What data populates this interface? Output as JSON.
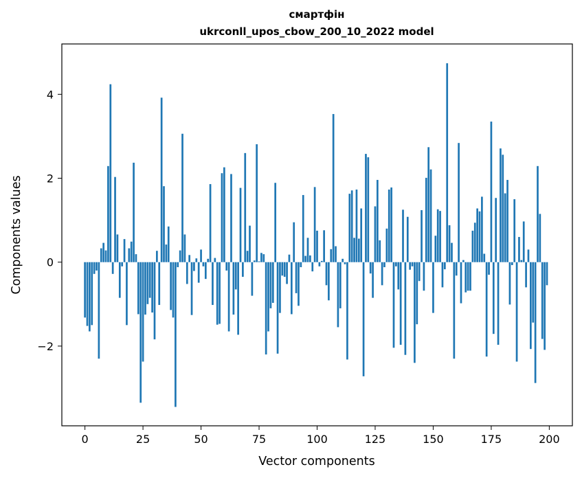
{
  "chart_data": {
    "type": "bar",
    "title": "смартфін",
    "subtitle": "ukrconll_upos_cbow_200_10_2022 model",
    "xlabel": "Vector components",
    "ylabel": "Components values",
    "xlim": [
      -9.95,
      209.95
    ],
    "ylim": [
      -3.9,
      5.2
    ],
    "xticks": [
      0,
      25,
      50,
      75,
      100,
      125,
      150,
      175,
      200
    ],
    "xtick_labels": [
      "0",
      "25",
      "50",
      "75",
      "100",
      "125",
      "150",
      "175",
      "200"
    ],
    "yticks": [
      -2,
      0,
      2,
      4
    ],
    "ytick_labels": [
      "−2",
      "0",
      "2",
      "4"
    ],
    "bar_color": "#1f77b4",
    "grid": false,
    "x": [
      0,
      1,
      2,
      3,
      4,
      5,
      6,
      7,
      8,
      9,
      10,
      11,
      12,
      13,
      14,
      15,
      16,
      17,
      18,
      19,
      20,
      21,
      22,
      23,
      24,
      25,
      26,
      27,
      28,
      29,
      30,
      31,
      32,
      33,
      34,
      35,
      36,
      37,
      38,
      39,
      40,
      41,
      42,
      43,
      44,
      45,
      46,
      47,
      48,
      49,
      50,
      51,
      52,
      53,
      54,
      55,
      56,
      57,
      58,
      59,
      60,
      61,
      62,
      63,
      64,
      65,
      66,
      67,
      68,
      69,
      70,
      71,
      72,
      73,
      74,
      75,
      76,
      77,
      78,
      79,
      80,
      81,
      82,
      83,
      84,
      85,
      86,
      87,
      88,
      89,
      90,
      91,
      92,
      93,
      94,
      95,
      96,
      97,
      98,
      99,
      100,
      101,
      102,
      103,
      104,
      105,
      106,
      107,
      108,
      109,
      110,
      111,
      112,
      113,
      114,
      115,
      116,
      117,
      118,
      119,
      120,
      121,
      122,
      123,
      124,
      125,
      126,
      127,
      128,
      129,
      130,
      131,
      132,
      133,
      134,
      135,
      136,
      137,
      138,
      139,
      140,
      141,
      142,
      143,
      144,
      145,
      146,
      147,
      148,
      149,
      150,
      151,
      152,
      153,
      154,
      155,
      156,
      157,
      158,
      159,
      160,
      161,
      162,
      163,
      164,
      165,
      166,
      167,
      168,
      169,
      170,
      171,
      172,
      173,
      174,
      175,
      176,
      177,
      178,
      179,
      180,
      181,
      182,
      183,
      184,
      185,
      186,
      187,
      188,
      189,
      190,
      191,
      192,
      193,
      194,
      195,
      196,
      197,
      198,
      199
    ],
    "values": [
      -1.32,
      -1.52,
      -1.65,
      -1.5,
      -0.28,
      -0.2,
      -2.3,
      0.33,
      0.46,
      0.28,
      2.29,
      4.24,
      -0.28,
      2.03,
      0.66,
      -0.85,
      -0.1,
      0.55,
      -1.5,
      0.33,
      0.49,
      2.37,
      0.19,
      -1.24,
      -3.35,
      -2.37,
      -1.25,
      -1.0,
      -0.85,
      -1.2,
      -1.84,
      0.27,
      -1.02,
      3.92,
      1.81,
      0.42,
      0.85,
      -1.14,
      -1.32,
      -3.45,
      -0.12,
      0.28,
      3.06,
      0.66,
      -0.52,
      0.17,
      -1.26,
      -0.21,
      0.09,
      -0.49,
      0.3,
      -0.1,
      -0.4,
      0.08,
      1.86,
      -1.02,
      0.1,
      -1.49,
      -1.47,
      2.12,
      2.26,
      -0.2,
      -1.65,
      2.1,
      -1.25,
      -0.65,
      -1.73,
      1.77,
      -0.35,
      2.6,
      0.27,
      0.87,
      -0.8,
      0.04,
      2.81,
      0.02,
      0.22,
      0.19,
      -2.2,
      -1.65,
      -1.1,
      -0.97,
      1.89,
      -2.18,
      -1.21,
      -0.32,
      -0.35,
      -0.52,
      0.18,
      -1.24,
      0.95,
      -0.74,
      -1.04,
      -0.12,
      1.6,
      0.15,
      0.58,
      0.16,
      -0.22,
      1.79,
      0.75,
      -0.1,
      0.03,
      0.76,
      -0.55,
      -0.91,
      0.31,
      3.53,
      0.38,
      -1.55,
      -1.1,
      0.08,
      -0.05,
      -2.32,
      1.63,
      1.71,
      0.58,
      1.73,
      0.56,
      1.28,
      -2.72,
      2.58,
      2.5,
      -0.27,
      -0.85,
      1.33,
      1.96,
      0.52,
      -0.55,
      -0.12,
      0.8,
      1.73,
      1.78,
      -2.04,
      -0.1,
      -0.65,
      -1.97,
      1.25,
      -2.21,
      1.08,
      -0.18,
      -0.1,
      -2.4,
      -1.48,
      -0.45,
      1.24,
      -0.68,
      2.01,
      2.74,
      2.21,
      -1.21,
      0.63,
      1.26,
      1.22,
      -0.6,
      -0.17,
      4.74,
      0.88,
      0.46,
      -2.3,
      -0.32,
      2.84,
      -0.98,
      0.05,
      -0.72,
      -0.68,
      -0.68,
      0.75,
      0.94,
      1.28,
      1.21,
      1.56,
      0.2,
      -2.25,
      -0.3,
      3.35,
      -1.71,
      1.53,
      -1.97,
      2.71,
      2.56,
      1.64,
      1.96,
      -1.01,
      -0.07,
      1.5,
      -2.37,
      0.6,
      0.05,
      0.97,
      -0.6,
      0.3,
      -2.07,
      -1.44,
      -2.88,
      2.29,
      1.15,
      -1.83,
      -2.09,
      -0.55
    ]
  }
}
